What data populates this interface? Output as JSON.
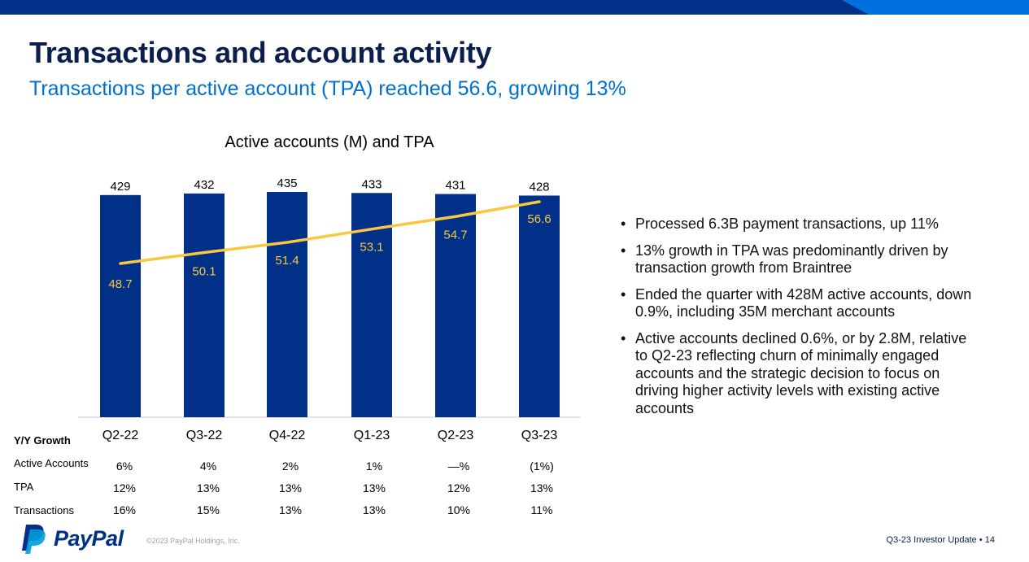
{
  "slide": {
    "title": "Transactions and account activity",
    "subtitle": "Transactions per active account (TPA) reached 56.6, growing 13%"
  },
  "chart_data": {
    "type": "bar",
    "title": "Active accounts (M) and TPA",
    "categories": [
      "Q2-22",
      "Q3-22",
      "Q4-22",
      "Q1-23",
      "Q2-23",
      "Q3-23"
    ],
    "series": [
      {
        "name": "Active accounts (M)",
        "type": "bar",
        "values": [
          429,
          432,
          435,
          433,
          431,
          428
        ],
        "color": "#003087"
      },
      {
        "name": "TPA",
        "type": "line",
        "values": [
          48.7,
          50.1,
          51.4,
          53.1,
          54.7,
          56.6
        ],
        "color": "#f8c840"
      }
    ],
    "bar_labels": [
      "429",
      "432",
      "435",
      "433",
      "431",
      "428"
    ],
    "line_labels": [
      "48.7",
      "50.1",
      "51.4",
      "53.1",
      "54.7",
      "56.6"
    ],
    "grid": false
  },
  "yy_growth": {
    "header": "Y/Y Growth",
    "rows": [
      {
        "label": "Active Accounts",
        "values": [
          "6%",
          "4%",
          "2%",
          "1%",
          "—%",
          "(1%)"
        ]
      },
      {
        "label": "TPA",
        "values": [
          "12%",
          "13%",
          "13%",
          "13%",
          "12%",
          "13%"
        ]
      },
      {
        "label": "Transactions",
        "values": [
          "16%",
          "15%",
          "13%",
          "13%",
          "10%",
          "11%"
        ]
      }
    ]
  },
  "bullets": [
    "Processed 6.3B payment transactions, up 11%",
    "13% growth in TPA was predominantly driven by transaction growth from Braintree",
    "Ended the quarter with 428M active accounts, down 0.9%, including 35M merchant accounts",
    "Active accounts declined 0.6%, or by 2.8M, relative to Q2-23 reflecting churn of minimally engaged accounts and the strategic decision to focus on driving higher activity levels with existing active accounts"
  ],
  "footer": {
    "brand": "PayPal",
    "copyright": "©2023 PayPal Holdings, Inc.",
    "page_label": "Q3-23 Investor Update • 14"
  },
  "colors": {
    "navy": "#003087",
    "accent_blue": "#0070d0",
    "light_blue": "#009cde",
    "tpa_line": "#f8c840"
  }
}
